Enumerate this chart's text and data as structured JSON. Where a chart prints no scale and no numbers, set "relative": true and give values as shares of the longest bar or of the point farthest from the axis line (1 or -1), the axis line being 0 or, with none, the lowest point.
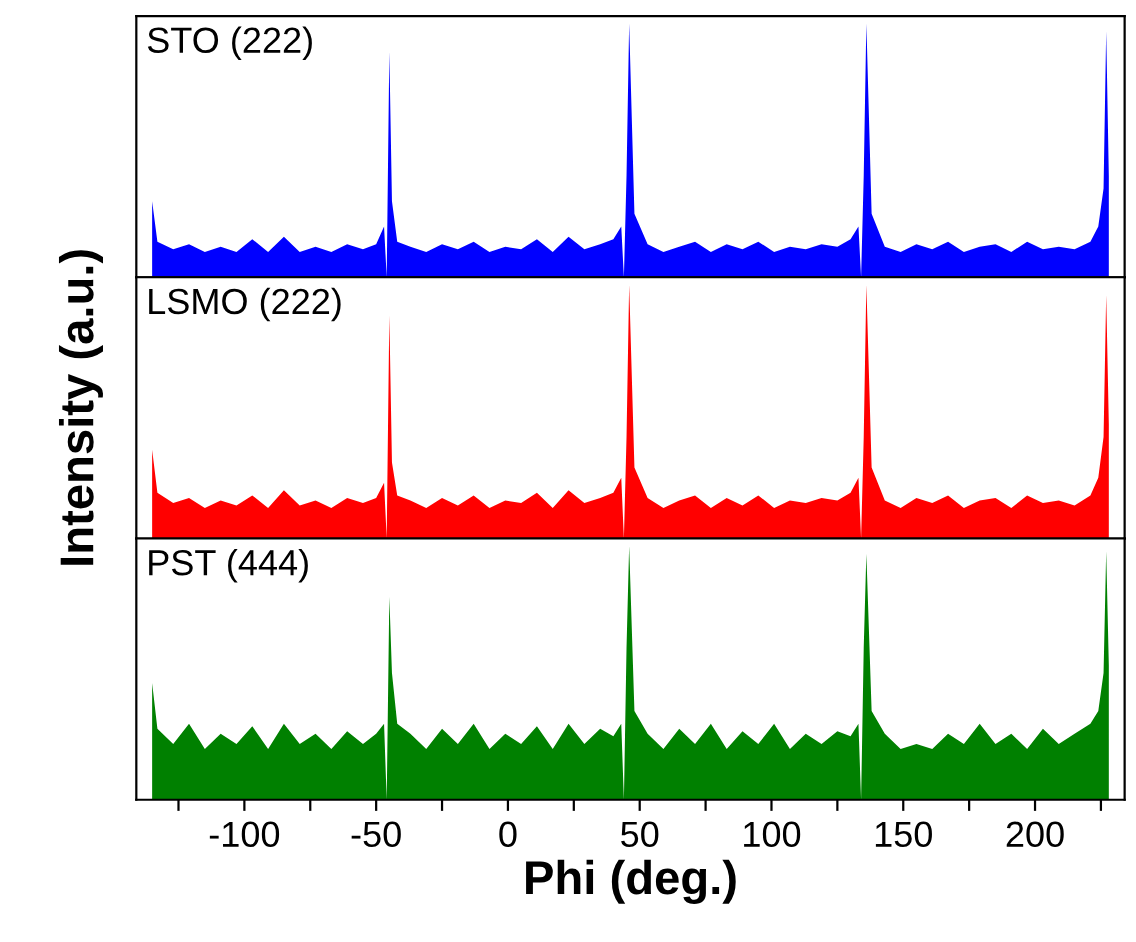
{
  "chart_data": [
    {
      "type": "area",
      "relative": true,
      "annotations": [
        "STO (222)"
      ],
      "tick_labels": false,
      "xlim": [
        -141,
        234
      ],
      "xticks": [
        {
          "value": -125,
          "label": null
        },
        -100,
        {
          "value": -75,
          "label": null
        },
        -50,
        {
          "value": -25,
          "label": null
        },
        0,
        {
          "value": 25,
          "label": null
        },
        50,
        {
          "value": 75,
          "label": null
        },
        100,
        {
          "value": 125,
          "label": null
        },
        150,
        {
          "value": 175,
          "label": null
        },
        200,
        {
          "value": 225,
          "label": null
        }
      ],
      "x": [
        -135,
        -133,
        -127,
        -121,
        -115,
        -109,
        -103,
        -97,
        -91,
        -85,
        -79,
        -73,
        -67,
        -61,
        -55,
        -50,
        -47,
        -46,
        -45,
        -44,
        -42,
        -37,
        -31,
        -25,
        -19,
        -13,
        -7,
        -1,
        5,
        11,
        17,
        23,
        29,
        35,
        40,
        43,
        44,
        45,
        46,
        48,
        53,
        59,
        65,
        71,
        77,
        83,
        89,
        95,
        101,
        107,
        113,
        119,
        125,
        130,
        133,
        134,
        135,
        136,
        138,
        143,
        149,
        155,
        161,
        167,
        173,
        179,
        185,
        191,
        197,
        203,
        209,
        215,
        221,
        224,
        226,
        227,
        228
      ],
      "series": [
        {
          "color": "#0000ff",
          "values": [
            0.3,
            0.14,
            0.11,
            0.13,
            0.1,
            0.12,
            0.1,
            0.15,
            0.1,
            0.16,
            0.1,
            0.12,
            0.1,
            0.13,
            0.11,
            0.13,
            0.2,
            0,
            0.89,
            0.3,
            0.14,
            0.12,
            0.1,
            0.13,
            0.11,
            0.14,
            0.1,
            0.12,
            0.11,
            0.15,
            0.1,
            0.16,
            0.11,
            0.13,
            0.15,
            0.2,
            0,
            0.4,
            1.0,
            0.25,
            0.13,
            0.1,
            0.12,
            0.14,
            0.1,
            0.13,
            0.11,
            0.14,
            0.1,
            0.12,
            0.11,
            0.13,
            0.12,
            0.15,
            0.2,
            0,
            0.4,
            1.0,
            0.25,
            0.12,
            0.1,
            0.13,
            0.11,
            0.14,
            0.1,
            0.12,
            0.13,
            0.1,
            0.14,
            0.11,
            0.12,
            0.11,
            0.14,
            0.2,
            0.35,
            0.97,
            0.4
          ]
        }
      ]
    },
    {
      "type": "area",
      "relative": true,
      "annotations": [
        "LSMO (222)"
      ],
      "ylabel": "Intensity (a.u.)",
      "tick_labels": false,
      "xlim": [
        -141,
        234
      ],
      "xticks": [
        {
          "value": -125,
          "label": null
        },
        -100,
        {
          "value": -75,
          "label": null
        },
        -50,
        {
          "value": -25,
          "label": null
        },
        0,
        {
          "value": 25,
          "label": null
        },
        50,
        {
          "value": 75,
          "label": null
        },
        100,
        {
          "value": 125,
          "label": null
        },
        150,
        {
          "value": 175,
          "label": null
        },
        200,
        {
          "value": 225,
          "label": null
        }
      ],
      "x": [
        -135,
        -133,
        -127,
        -121,
        -115,
        -109,
        -103,
        -97,
        -91,
        -85,
        -79,
        -73,
        -67,
        -61,
        -55,
        -50,
        -47,
        -46,
        -45,
        -44,
        -42,
        -37,
        -31,
        -25,
        -19,
        -13,
        -7,
        -1,
        5,
        11,
        17,
        23,
        29,
        35,
        40,
        43,
        44,
        45,
        46,
        48,
        53,
        59,
        65,
        71,
        77,
        83,
        89,
        95,
        101,
        107,
        113,
        119,
        125,
        130,
        133,
        134,
        135,
        136,
        138,
        143,
        149,
        155,
        161,
        167,
        173,
        179,
        185,
        191,
        197,
        203,
        209,
        215,
        221,
        224,
        226,
        227,
        228
      ],
      "series": [
        {
          "color": "#ff0000",
          "values": [
            0.35,
            0.18,
            0.14,
            0.16,
            0.12,
            0.15,
            0.13,
            0.17,
            0.12,
            0.19,
            0.13,
            0.15,
            0.12,
            0.16,
            0.14,
            0.16,
            0.22,
            0,
            0.88,
            0.3,
            0.17,
            0.15,
            0.12,
            0.16,
            0.13,
            0.17,
            0.12,
            0.15,
            0.14,
            0.18,
            0.12,
            0.19,
            0.14,
            0.16,
            0.18,
            0.24,
            0,
            0.4,
            1.0,
            0.28,
            0.16,
            0.12,
            0.15,
            0.17,
            0.12,
            0.16,
            0.13,
            0.17,
            0.12,
            0.15,
            0.14,
            0.16,
            0.15,
            0.18,
            0.24,
            0,
            0.4,
            1.0,
            0.28,
            0.15,
            0.12,
            0.16,
            0.14,
            0.17,
            0.12,
            0.15,
            0.16,
            0.12,
            0.17,
            0.14,
            0.15,
            0.13,
            0.17,
            0.24,
            0.4,
            0.96,
            0.45
          ]
        }
      ]
    },
    {
      "type": "area",
      "relative": true,
      "annotations": [
        "PST (444)"
      ],
      "xlabel": "Phi (deg.)",
      "tick_labels": "x",
      "xlim": [
        -141,
        234
      ],
      "xticks": [
        {
          "value": -125,
          "label": null
        },
        -100,
        {
          "value": -75,
          "label": null
        },
        -50,
        {
          "value": -25,
          "label": null
        },
        0,
        {
          "value": 25,
          "label": null
        },
        50,
        {
          "value": 75,
          "label": null
        },
        100,
        {
          "value": 125,
          "label": null
        },
        150,
        {
          "value": 175,
          "label": null
        },
        200,
        {
          "value": 225,
          "label": null
        }
      ],
      "x": [
        -135,
        -133,
        -127,
        -121,
        -115,
        -109,
        -103,
        -97,
        -91,
        -85,
        -79,
        -73,
        -67,
        -61,
        -55,
        -50,
        -47,
        -46,
        -45,
        -44,
        -42,
        -37,
        -31,
        -25,
        -19,
        -13,
        -7,
        -1,
        5,
        11,
        17,
        23,
        29,
        35,
        40,
        43,
        44,
        45,
        46,
        48,
        53,
        59,
        65,
        71,
        77,
        83,
        89,
        95,
        101,
        107,
        113,
        119,
        125,
        130,
        133,
        134,
        135,
        136,
        138,
        143,
        149,
        155,
        161,
        167,
        173,
        179,
        185,
        191,
        197,
        203,
        209,
        215,
        221,
        224,
        226,
        227,
        228
      ],
      "series": [
        {
          "color": "#008000",
          "values": [
            0.46,
            0.28,
            0.22,
            0.3,
            0.2,
            0.26,
            0.22,
            0.29,
            0.2,
            0.3,
            0.22,
            0.26,
            0.2,
            0.27,
            0.22,
            0.26,
            0.3,
            0,
            0.8,
            0.5,
            0.3,
            0.26,
            0.2,
            0.28,
            0.22,
            0.3,
            0.2,
            0.26,
            0.22,
            0.29,
            0.2,
            0.3,
            0.22,
            0.28,
            0.25,
            0.3,
            0,
            0.6,
            1.0,
            0.35,
            0.26,
            0.2,
            0.28,
            0.22,
            0.3,
            0.2,
            0.27,
            0.22,
            0.3,
            0.2,
            0.26,
            0.22,
            0.27,
            0.25,
            0.3,
            0,
            0.6,
            0.97,
            0.35,
            0.26,
            0.2,
            0.22,
            0.2,
            0.26,
            0.22,
            0.3,
            0.22,
            0.26,
            0.2,
            0.28,
            0.22,
            0.26,
            0.3,
            0.35,
            0.5,
            0.98,
            0.53
          ]
        }
      ]
    }
  ]
}
